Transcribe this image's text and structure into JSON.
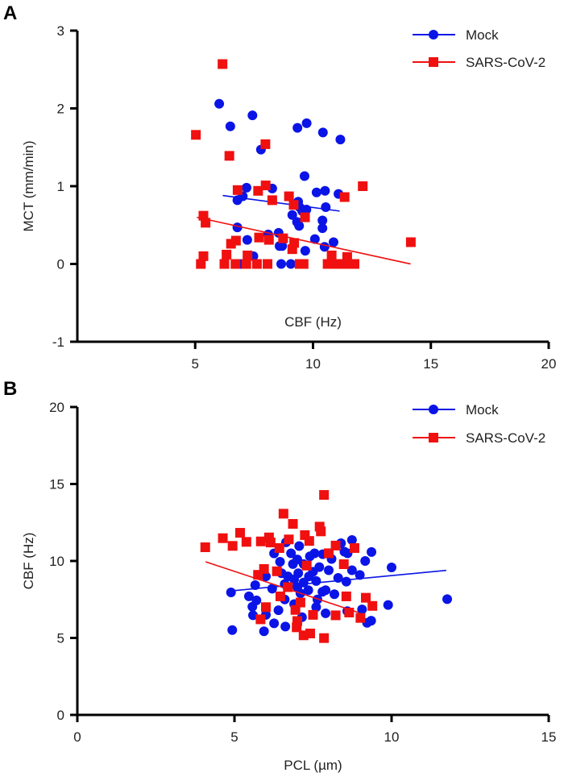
{
  "colors": {
    "mock": "#0a14e6",
    "sars": "#f01010",
    "axis": "#000000"
  },
  "chart_data": [
    {
      "panel_label": "A",
      "type": "scatter",
      "xlabel": "CBF (Hz)",
      "ylabel": "MCT (mm/min)",
      "xlim": [
        0,
        20
      ],
      "ylim": [
        -1,
        3
      ],
      "xticks": [
        "5",
        "10",
        "15",
        "20"
      ],
      "yticks": [
        "-1",
        "0",
        "1",
        "2",
        "3"
      ],
      "grid": false,
      "legend_position": "top-right",
      "series": [
        {
          "name": "Mock",
          "marker": "circle",
          "points": [
            [
              6.02,
              2.06
            ],
            [
              6.49,
              1.77
            ],
            [
              7.43,
              1.91
            ],
            [
              9.34,
              1.75
            ],
            [
              9.73,
              1.81
            ],
            [
              10.42,
              1.69
            ],
            [
              11.16,
              1.6
            ],
            [
              7.79,
              1.47
            ],
            [
              9.64,
              1.13
            ],
            [
              7.18,
              0.98
            ],
            [
              8.27,
              0.97
            ],
            [
              10.15,
              0.92
            ],
            [
              10.51,
              0.94
            ],
            [
              11.08,
              0.9
            ],
            [
              7.02,
              0.87
            ],
            [
              6.79,
              0.82
            ],
            [
              9.37,
              0.8
            ],
            [
              9.43,
              0.73
            ],
            [
              9.72,
              0.7
            ],
            [
              10.54,
              0.73
            ],
            [
              9.54,
              0.68
            ],
            [
              9.12,
              0.63
            ],
            [
              10.4,
              0.56
            ],
            [
              9.32,
              0.54
            ],
            [
              9.41,
              0.49
            ],
            [
              10.4,
              0.46
            ],
            [
              6.79,
              0.47
            ],
            [
              8.1,
              0.38
            ],
            [
              8.54,
              0.4
            ],
            [
              7.21,
              0.31
            ],
            [
              10.08,
              0.32
            ],
            [
              10.87,
              0.28
            ],
            [
              8.58,
              0.23
            ],
            [
              8.69,
              0.23
            ],
            [
              10.49,
              0.22
            ],
            [
              9.67,
              0.17
            ],
            [
              7.47,
              0.1
            ],
            [
              6.96,
              0
            ],
            [
              8.65,
              0
            ],
            [
              9.06,
              0
            ]
          ],
          "fit": [
            [
              6.17,
              0.88
            ],
            [
              11.13,
              0.68
            ]
          ]
        },
        {
          "name": "SARS-CoV-2",
          "marker": "square",
          "points": [
            [
              6.16,
              2.57
            ],
            [
              5.03,
              1.66
            ],
            [
              7.98,
              1.54
            ],
            [
              6.45,
              1.39
            ],
            [
              12.11,
              1.0
            ],
            [
              6.8,
              0.95
            ],
            [
              7.67,
              0.94
            ],
            [
              7.99,
              1.01
            ],
            [
              8.27,
              0.82
            ],
            [
              8.98,
              0.87
            ],
            [
              11.34,
              0.86
            ],
            [
              9.18,
              0.76
            ],
            [
              9.66,
              0.6
            ],
            [
              5.35,
              0.62
            ],
            [
              5.44,
              0.53
            ],
            [
              7.71,
              0.34
            ],
            [
              8.13,
              0.31
            ],
            [
              8.73,
              0.33
            ],
            [
              9.2,
              0.27
            ],
            [
              9.12,
              0.19
            ],
            [
              6.73,
              0.3
            ],
            [
              6.52,
              0.26
            ],
            [
              6.33,
              0.12
            ],
            [
              5.35,
              0.1
            ],
            [
              14.15,
              0.28
            ],
            [
              7.22,
              0.11
            ],
            [
              5.24,
              0
            ],
            [
              6.24,
              0
            ],
            [
              6.71,
              0
            ],
            [
              7.17,
              0
            ],
            [
              7.62,
              0
            ],
            [
              8.07,
              0
            ],
            [
              9.43,
              0
            ],
            [
              9.6,
              0
            ],
            [
              10.62,
              0
            ],
            [
              10.9,
              0
            ],
            [
              11.24,
              0
            ],
            [
              11.59,
              0
            ],
            [
              11.76,
              0
            ],
            [
              10.79,
              0.11
            ],
            [
              11.45,
              0.09
            ]
          ],
          "fit": [
            [
              5.07,
              0.6
            ],
            [
              14.14,
              0
            ]
          ]
        }
      ]
    },
    {
      "panel_label": "B",
      "type": "scatter",
      "xlabel": "PCL (µm)",
      "ylabel": "CBF (Hz)",
      "xlim": [
        0,
        15
      ],
      "ylim": [
        0,
        20
      ],
      "xticks": [
        "0",
        "5",
        "10",
        "15"
      ],
      "yticks": [
        "0",
        "5",
        "10",
        "15",
        "20"
      ],
      "grid": false,
      "legend_position": "top-right",
      "series": [
        {
          "name": "Mock",
          "marker": "circle",
          "points": [
            [
              11.77,
              7.52
            ],
            [
              4.93,
              5.51
            ],
            [
              4.89,
              7.96
            ],
            [
              10.0,
              9.58
            ],
            [
              9.89,
              7.14
            ],
            [
              8.74,
              11.36
            ],
            [
              8.39,
              11.15
            ],
            [
              9.36,
              10.58
            ],
            [
              9.16,
              10.0
            ],
            [
              8.6,
              10.5
            ],
            [
              8.5,
              10.6
            ],
            [
              6.64,
              11.21
            ],
            [
              7.06,
              10.97
            ],
            [
              6.26,
              10.49
            ],
            [
              7.81,
              10.44
            ],
            [
              7.55,
              10.5
            ],
            [
              8.09,
              10.13
            ],
            [
              8.99,
              9.09
            ],
            [
              8.56,
              8.66
            ],
            [
              8.74,
              9.4
            ],
            [
              8.0,
              9.4
            ],
            [
              5.66,
              8.43
            ],
            [
              6.0,
              9.0
            ],
            [
              5.46,
              7.7
            ],
            [
              5.7,
              7.44
            ],
            [
              5.57,
              7.03
            ],
            [
              5.59,
              6.47
            ],
            [
              6.26,
              5.95
            ],
            [
              5.94,
              5.43
            ],
            [
              6.62,
              5.74
            ],
            [
              6.0,
              6.5
            ],
            [
              7.15,
              6.35
            ],
            [
              8.59,
              6.74
            ],
            [
              9.06,
              6.85
            ],
            [
              9.22,
              5.98
            ],
            [
              9.35,
              6.12
            ],
            [
              8.18,
              7.84
            ],
            [
              7.9,
              8.1
            ],
            [
              6.9,
              7.2
            ],
            [
              6.6,
              7.5
            ],
            [
              7.64,
              7.5
            ],
            [
              7.9,
              6.6
            ],
            [
              6.86,
              9.8
            ],
            [
              7.03,
              9.2
            ],
            [
              6.7,
              9.0
            ],
            [
              7.2,
              9.8
            ],
            [
              7.37,
              9.0
            ],
            [
              7.0,
              8.3
            ],
            [
              7.35,
              8.1
            ],
            [
              7.6,
              8.7
            ],
            [
              6.8,
              10.5
            ],
            [
              6.45,
              9.95
            ],
            [
              7.7,
              9.6
            ],
            [
              6.6,
              8.5
            ],
            [
              7.1,
              7.9
            ],
            [
              7.8,
              8.0
            ],
            [
              6.9,
              8.8
            ],
            [
              7.2,
              8.6
            ],
            [
              7.5,
              9.3
            ],
            [
              6.5,
              9.2
            ],
            [
              7.0,
              10.1
            ],
            [
              7.4,
              10.3
            ],
            [
              6.2,
              8.2
            ],
            [
              8.3,
              8.9
            ],
            [
              6.4,
              6.8
            ],
            [
              7.6,
              7.0
            ]
          ],
          "fit": [
            [
              5.02,
              8.08
            ],
            [
              11.74,
              9.39
            ]
          ]
        },
        {
          "name": "SARS-CoV-2",
          "marker": "square",
          "points": [
            [
              7.85,
              14.29
            ],
            [
              6.56,
              13.07
            ],
            [
              6.86,
              12.41
            ],
            [
              7.71,
              12.23
            ],
            [
              7.75,
              11.92
            ],
            [
              4.63,
              11.48
            ],
            [
              5.18,
              11.83
            ],
            [
              5.38,
              11.24
            ],
            [
              4.94,
              10.98
            ],
            [
              4.07,
              10.89
            ],
            [
              5.84,
              11.27
            ],
            [
              6.1,
              11.53
            ],
            [
              6.15,
              11.2
            ],
            [
              7.24,
              11.68
            ],
            [
              7.38,
              11.3
            ],
            [
              6.73,
              11.4
            ],
            [
              6.43,
              10.84
            ],
            [
              8.22,
              11.0
            ],
            [
              8.82,
              10.84
            ],
            [
              5.94,
              9.48
            ],
            [
              5.75,
              9.1
            ],
            [
              6.35,
              9.33
            ],
            [
              8.48,
              9.79
            ],
            [
              8.56,
              7.7
            ],
            [
              9.18,
              7.61
            ],
            [
              9.39,
              7.08
            ],
            [
              8.65,
              6.65
            ],
            [
              9.01,
              6.3
            ],
            [
              8.22,
              6.47
            ],
            [
              5.83,
              6.21
            ],
            [
              6.0,
              7.0
            ],
            [
              6.98,
              5.69
            ],
            [
              7.2,
              5.17
            ],
            [
              7.41,
              5.29
            ],
            [
              7.85,
              4.99
            ],
            [
              7.0,
              6.1
            ],
            [
              6.94,
              6.82
            ],
            [
              7.5,
              6.5
            ],
            [
              6.46,
              7.7
            ],
            [
              7.1,
              7.3
            ],
            [
              7.3,
              9.7
            ],
            [
              6.7,
              8.3
            ],
            [
              8.0,
              10.5
            ]
          ],
          "fit": [
            [
              4.08,
              9.95
            ],
            [
              8.95,
              6.65
            ]
          ]
        }
      ]
    }
  ]
}
